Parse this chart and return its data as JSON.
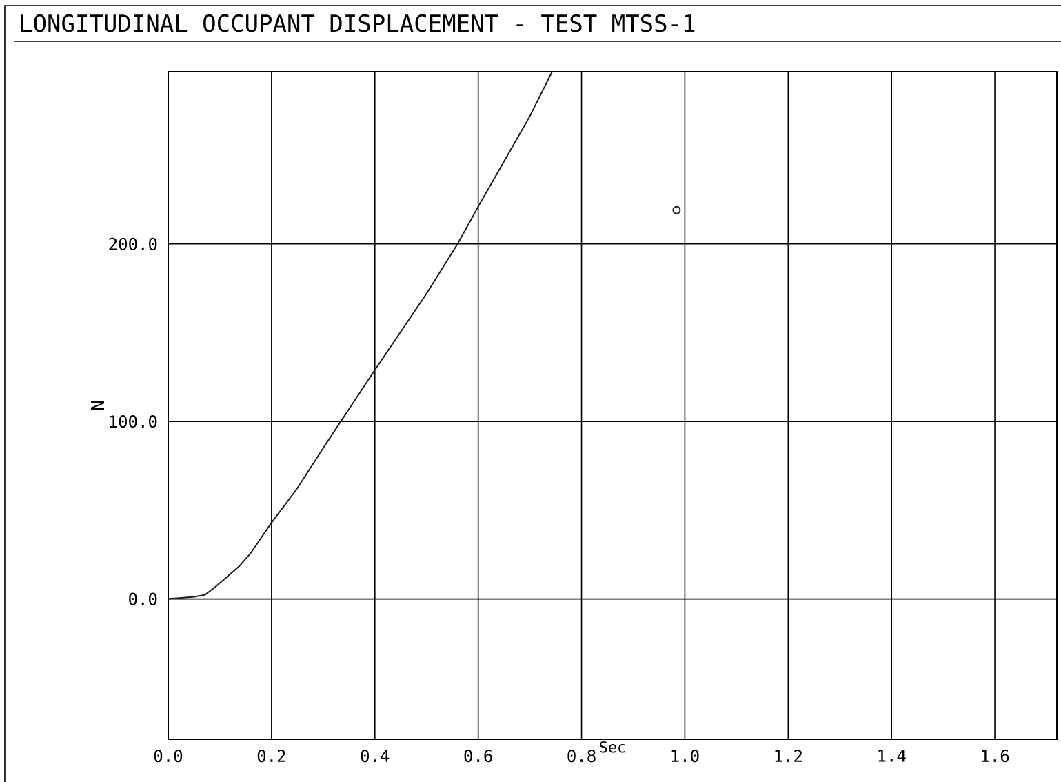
{
  "chart_data": {
    "type": "line",
    "title": "LONGITUDINAL OCCUPANT DISPLACEMENT - TEST MTSS-1",
    "xlabel": "Sec",
    "ylabel": "N",
    "series": [
      {
        "color": "#1a1a1a",
        "x": [
          0,
          0.025,
          0.05,
          0.071,
          0.092,
          0.115,
          0.138,
          0.159,
          0.2,
          0.249,
          0.3,
          0.334,
          0.4,
          0.5,
          0.56,
          0.6,
          0.7,
          0.743
        ],
        "values": [
          0,
          0.6,
          1.2,
          2.3,
          7,
          12.8,
          18.6,
          25.6,
          43,
          62,
          85,
          100,
          129,
          172,
          200,
          221,
          272,
          297
        ]
      },
      {
        "type": "scatter",
        "color": "#1a1a1a",
        "marker": "circle",
        "x": [
          0.984
        ],
        "values": [
          219
        ]
      }
    ],
    "xlim": [
      0,
      1.72
    ],
    "ylim": [
      -79,
      297
    ],
    "xticks": [
      {
        "value": 0,
        "label": "0.0"
      },
      0.2,
      0.4,
      0.6,
      0.8,
      {
        "value": 1.0,
        "label": "1.0"
      },
      1.2,
      1.4,
      1.6
    ],
    "yticks": [
      {
        "value": 0,
        "label": "0.0"
      },
      {
        "value": 100,
        "label": "100.0"
      },
      {
        "value": 200,
        "label": "200.0"
      }
    ],
    "grid": true
  }
}
